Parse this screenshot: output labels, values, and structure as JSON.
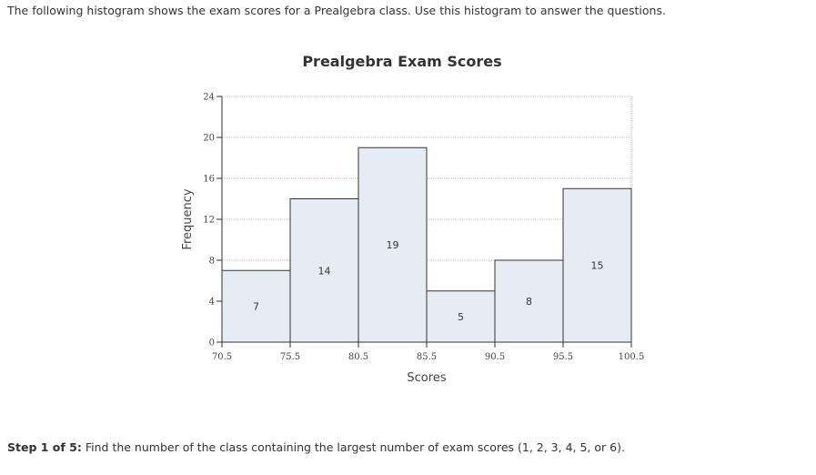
{
  "intro": "The following histogram shows the exam scores for a Prealgebra class. Use this histogram to answer the questions.",
  "chart_data": {
    "type": "bar",
    "title": "Prealgebra Exam Scores",
    "xlabel": "Scores",
    "ylabel": "Frequency",
    "bin_edges": [
      70.5,
      75.5,
      80.5,
      85.5,
      90.5,
      95.5,
      100.5
    ],
    "values": [
      7,
      14,
      19,
      5,
      8,
      15
    ],
    "yticks": [
      0,
      4,
      8,
      12,
      16,
      20,
      24
    ],
    "ylim": [
      0,
      24
    ],
    "xlim": [
      70.5,
      100.5
    ],
    "grid": true,
    "bar_fill": "#e6ecf3",
    "bar_stroke": "#333333"
  },
  "step": {
    "prefix": "Step 1 of 5:",
    "text": " Find the number of the class containing the largest number of exam scores (1, 2, 3, 4, 5, or 6)."
  }
}
